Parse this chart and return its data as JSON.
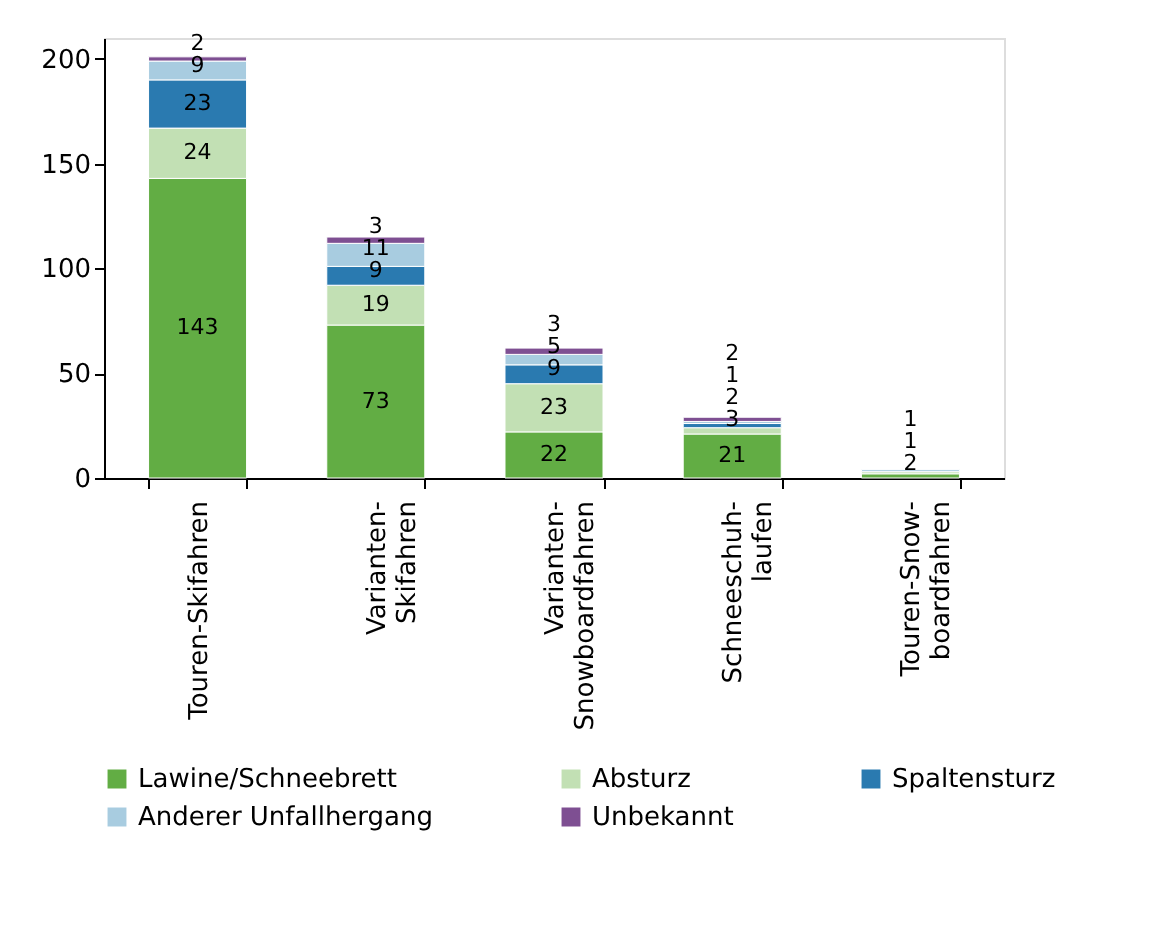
{
  "chart_data": {
    "type": "bar",
    "stacked": true,
    "data_labels": true,
    "legend": "bottom",
    "grid": false,
    "categories": [
      "Touren-Skifahren",
      "Varianten-\nSkifahren",
      "Varianten-\nSnowboardfahren",
      "Schneeschuh-\nlaufen",
      "Touren-Snow-\nboardfahren"
    ],
    "ylim": [
      0,
      210
    ],
    "yticks": [
      0,
      50,
      100,
      150,
      200
    ],
    "series": [
      {
        "name": "Lawine/Schneebrett",
        "color": "#62ad44",
        "values": [
          143,
          73,
          22,
          21,
          2
        ]
      },
      {
        "name": "Absturz",
        "color": "#c2e0b4",
        "values": [
          24,
          19,
          23,
          3,
          1
        ]
      },
      {
        "name": "Spaltensturz",
        "color": "#2a7ab0",
        "values": [
          23,
          9,
          9,
          2,
          null
        ]
      },
      {
        "name": "Anderer Unfallhergang",
        "color": "#a8cce0",
        "values": [
          9,
          11,
          5,
          1,
          1
        ]
      },
      {
        "name": "Unbekannt",
        "color": "#7e4f92",
        "values": [
          2,
          3,
          3,
          2,
          null
        ]
      }
    ]
  }
}
